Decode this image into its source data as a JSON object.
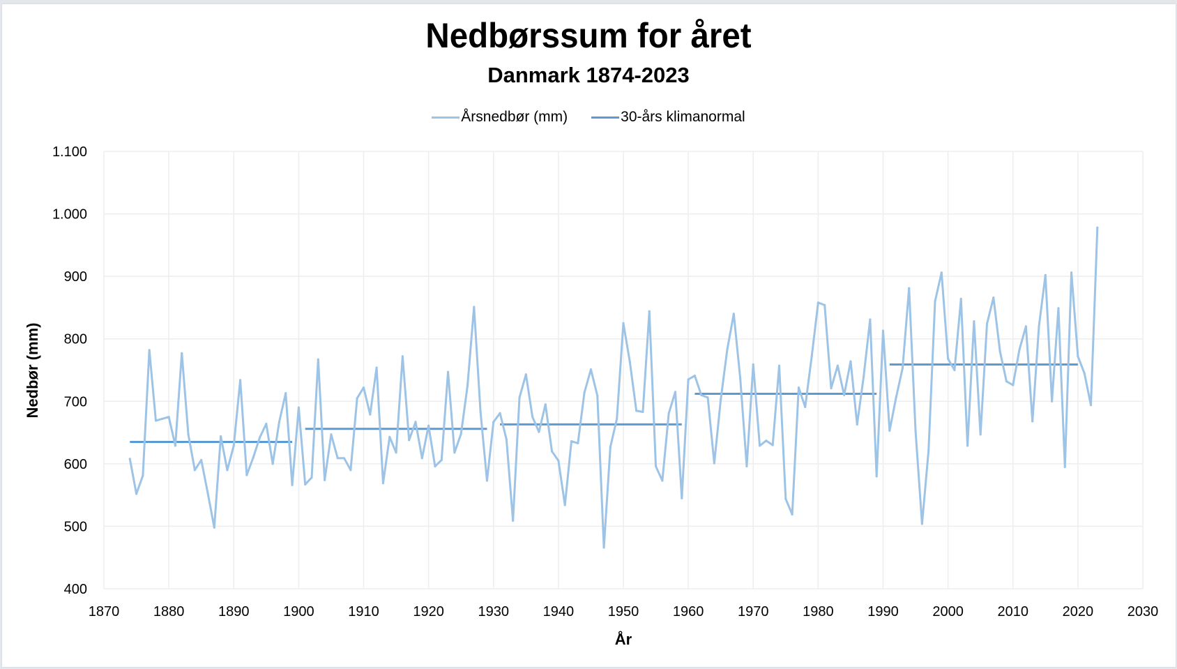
{
  "chart_data": {
    "type": "line",
    "title": "Nedbørssum for året",
    "subtitle": "Danmark 1874-2023",
    "xlabel": "År",
    "ylabel": "Nedbør (mm)",
    "xlim": [
      1870,
      2030
    ],
    "ylim": [
      400,
      1100
    ],
    "x_ticks": [
      1870,
      1880,
      1890,
      1900,
      1910,
      1920,
      1930,
      1940,
      1950,
      1960,
      1970,
      1980,
      1990,
      2000,
      2010,
      2020,
      2030
    ],
    "x_tick_labels": [
      "1870",
      "1880",
      "1890",
      "1900",
      "1910",
      "1920",
      "1930",
      "1940",
      "1950",
      "1960",
      "1970",
      "1980",
      "1990",
      "2000",
      "2010",
      "2020",
      "2030"
    ],
    "y_ticks": [
      400,
      500,
      600,
      700,
      800,
      900,
      1000,
      1100
    ],
    "y_tick_labels": [
      "400",
      "500",
      "600",
      "700",
      "800",
      "900",
      "1.000",
      "1.100"
    ],
    "grid": true,
    "legend_position": "top-center",
    "series": [
      {
        "name": "Årsnedbør (mm)",
        "color": "#9DC3E6",
        "x_start": 1874,
        "values": [
          608,
          552,
          581,
          782,
          669,
          672,
          675,
          629,
          777,
          647,
          590,
          606,
          553,
          498,
          644,
          590,
          629,
          734,
          582,
          610,
          642,
          664,
          600,
          667,
          713,
          566,
          690,
          567,
          578,
          767,
          574,
          647,
          609,
          609,
          590,
          705,
          722,
          679,
          754,
          569,
          643,
          618,
          772,
          638,
          667,
          609,
          661,
          596,
          606,
          747,
          618,
          648,
          725,
          851,
          683,
          573,
          667,
          681,
          639,
          509,
          706,
          743,
          675,
          651,
          695,
          620,
          605,
          534,
          636,
          633,
          714,
          751,
          709,
          466,
          627,
          672,
          825,
          763,
          685,
          683,
          844,
          596,
          573,
          681,
          715,
          545,
          735,
          741,
          710,
          706,
          601,
          703,
          783,
          840,
          737,
          596,
          759,
          629,
          637,
          630,
          757,
          544,
          519,
          722,
          691,
          771,
          858,
          854,
          721,
          757,
          710,
          764,
          663,
          739,
          831,
          580,
          813,
          653,
          706,
          753,
          881,
          652,
          504,
          621,
          860,
          906,
          768,
          750,
          864,
          629,
          828,
          647,
          824,
          866,
          780,
          732,
          726,
          783,
          820,
          668,
          820,
          902,
          700,
          849,
          595,
          906,
          772,
          745,
          694,
          978
        ]
      },
      {
        "name": "30-års klimanormal",
        "color": "#5B9BD5",
        "segments": [
          {
            "from": 1874,
            "to": 1899,
            "value": 635
          },
          {
            "from": 1901,
            "to": 1929,
            "value": 656
          },
          {
            "from": 1931,
            "to": 1959,
            "value": 663
          },
          {
            "from": 1961,
            "to": 1989,
            "value": 712
          },
          {
            "from": 1991,
            "to": 2020,
            "value": 759
          }
        ]
      }
    ]
  }
}
